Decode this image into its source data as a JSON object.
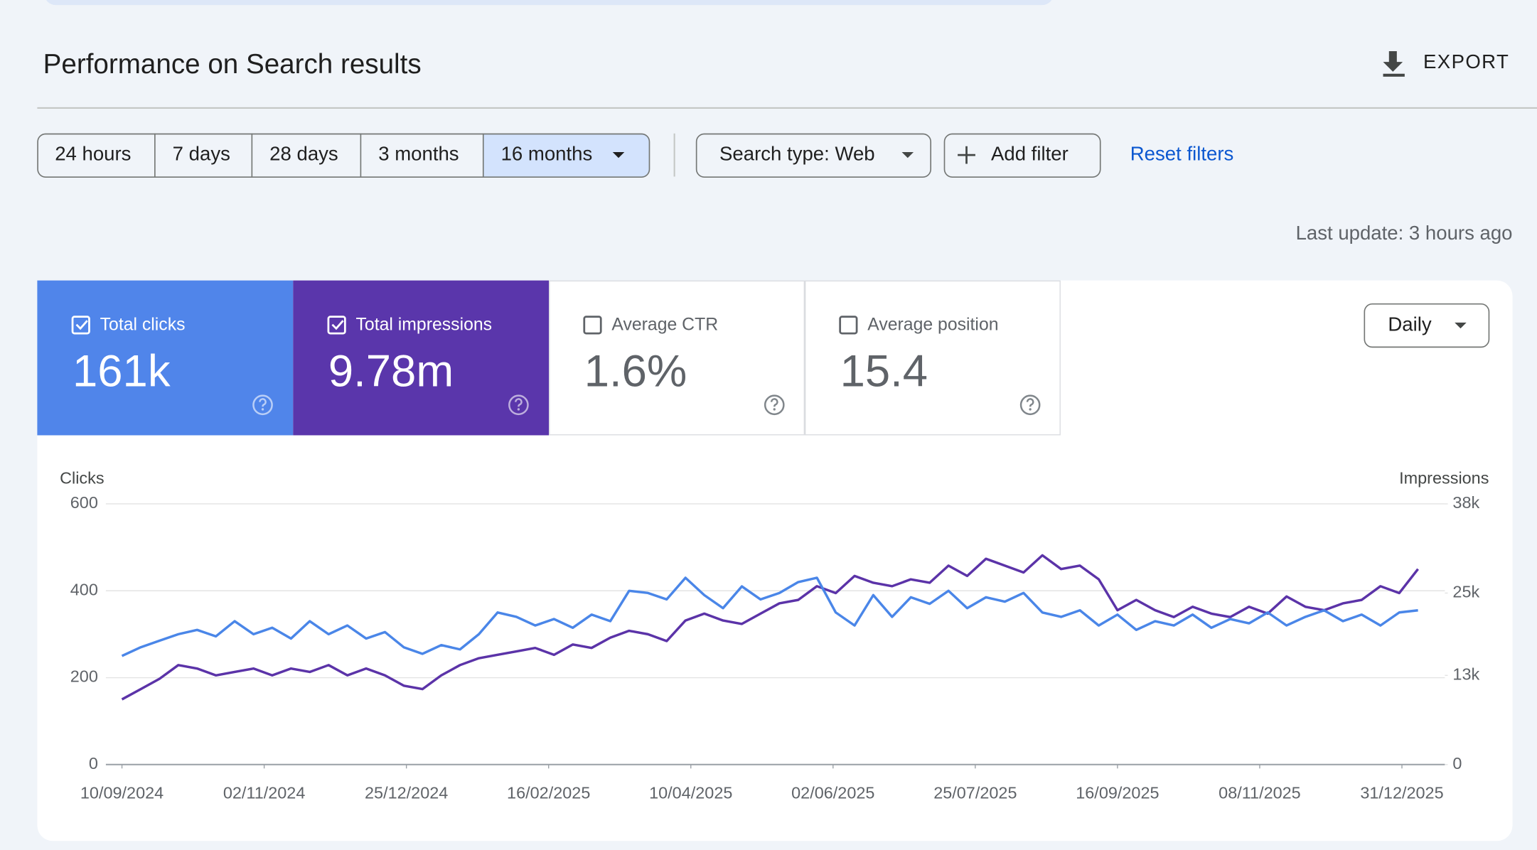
{
  "header": {
    "title": "Performance on Search results",
    "export": "EXPORT"
  },
  "filters": {
    "date_ranges": [
      "24 hours",
      "7 days",
      "28 days",
      "3 months",
      "16 months"
    ],
    "selected": 4,
    "search_type": "Search type: Web",
    "add_filter": "Add filter",
    "reset": "Reset filters"
  },
  "last_update": "Last update: 3 hours ago",
  "metrics": [
    {
      "label": "Total clicks",
      "value": "161k",
      "checked": true,
      "color": "#5085ea"
    },
    {
      "label": "Total impressions",
      "value": "9.78m",
      "checked": true,
      "color": "#5a36ab"
    },
    {
      "label": "Average CTR",
      "value": "1.6%",
      "checked": false
    },
    {
      "label": "Average position",
      "value": "15.4",
      "checked": false
    }
  ],
  "granularity": "Daily",
  "chart_data": {
    "type": "line",
    "ylabel": "Clicks",
    "y2label": "Impressions",
    "x": [
      "10/09/2024",
      "17/09/2024",
      "24/09/2024",
      "01/10/2024",
      "08/10/2024",
      "15/10/2024",
      "22/10/2024",
      "29/10/2024",
      "05/11/2024",
      "12/11/2024",
      "19/11/2024",
      "26/11/2024",
      "03/12/2024",
      "10/12/2024",
      "17/12/2024",
      "24/12/2024",
      "31/12/2024",
      "07/01/2025",
      "14/01/2025",
      "21/01/2025",
      "28/01/2025",
      "04/02/2025",
      "11/02/2025",
      "18/02/2025",
      "25/02/2025",
      "04/03/2025",
      "11/03/2025",
      "18/03/2025",
      "25/03/2025",
      "01/04/2025",
      "08/04/2025",
      "15/04/2025",
      "22/04/2025",
      "29/04/2025",
      "06/05/2025",
      "13/05/2025",
      "20/05/2025",
      "27/05/2025",
      "03/06/2025",
      "10/06/2025",
      "17/06/2025",
      "24/06/2025",
      "01/07/2025",
      "08/07/2025",
      "15/07/2025",
      "22/07/2025",
      "29/07/2025",
      "05/08/2025",
      "12/08/2025",
      "19/08/2025",
      "26/08/2025",
      "02/09/2025",
      "09/09/2025",
      "16/09/2025",
      "23/09/2025",
      "30/09/2025",
      "07/10/2025",
      "14/10/2025",
      "21/10/2025",
      "28/10/2025",
      "04/11/2025",
      "11/11/2025",
      "18/11/2025",
      "25/11/2025",
      "02/12/2025",
      "09/12/2025",
      "16/12/2025",
      "23/12/2025",
      "30/12/2025",
      "06/01/2026"
    ],
    "series": [
      {
        "name": "Clicks",
        "color": "#4a86e8",
        "values": [
          250,
          270,
          285,
          300,
          310,
          295,
          330,
          300,
          315,
          290,
          330,
          300,
          320,
          290,
          305,
          270,
          255,
          275,
          265,
          300,
          350,
          340,
          320,
          335,
          315,
          345,
          330,
          400,
          395,
          380,
          430,
          390,
          360,
          410,
          380,
          395,
          420,
          430,
          350,
          320,
          390,
          340,
          385,
          370,
          400,
          360,
          385,
          375,
          395,
          350,
          340,
          355,
          320,
          345,
          310,
          330,
          320,
          345,
          315,
          335,
          325,
          350,
          320,
          340,
          355,
          330,
          345,
          320,
          350,
          355
        ]
      },
      {
        "name": "Impressions",
        "color": "#5b33a8",
        "axis": "y2",
        "values": [
          9500,
          11000,
          12500,
          14500,
          14000,
          13000,
          13500,
          14000,
          13000,
          14000,
          13500,
          14500,
          13000,
          14000,
          13000,
          11500,
          11000,
          13000,
          14500,
          15500,
          16000,
          16500,
          17000,
          16000,
          17500,
          17000,
          18500,
          19500,
          19000,
          18000,
          21000,
          22000,
          21000,
          20500,
          22000,
          23500,
          24000,
          26000,
          25000,
          27500,
          26500,
          26000,
          27000,
          26500,
          29000,
          27500,
          30000,
          29000,
          28000,
          30500,
          28500,
          29000,
          27000,
          22500,
          24000,
          22500,
          21500,
          23000,
          22000,
          21500,
          23000,
          22000,
          24500,
          23000,
          22500,
          23500,
          24000,
          26000,
          25000,
          28500
        ]
      }
    ],
    "xlim": [
      "04/09/2024",
      "16/01/2026"
    ],
    "xticks": [
      "10/09/2024",
      "02/11/2024",
      "25/12/2024",
      "16/02/2025",
      "10/04/2025",
      "02/06/2025",
      "25/07/2025",
      "16/09/2025",
      "08/11/2025",
      "31/12/2025"
    ],
    "ylim": [
      0,
      600
    ],
    "yticks": [
      0,
      200,
      400,
      600
    ],
    "y2lim": [
      0,
      38000
    ],
    "y2ticks": [
      0,
      {
        "value": 13000,
        "label": "13k"
      },
      {
        "value": 25000,
        "label": "25k"
      },
      {
        "value": 38000,
        "label": "38k"
      }
    ],
    "grid": true
  }
}
